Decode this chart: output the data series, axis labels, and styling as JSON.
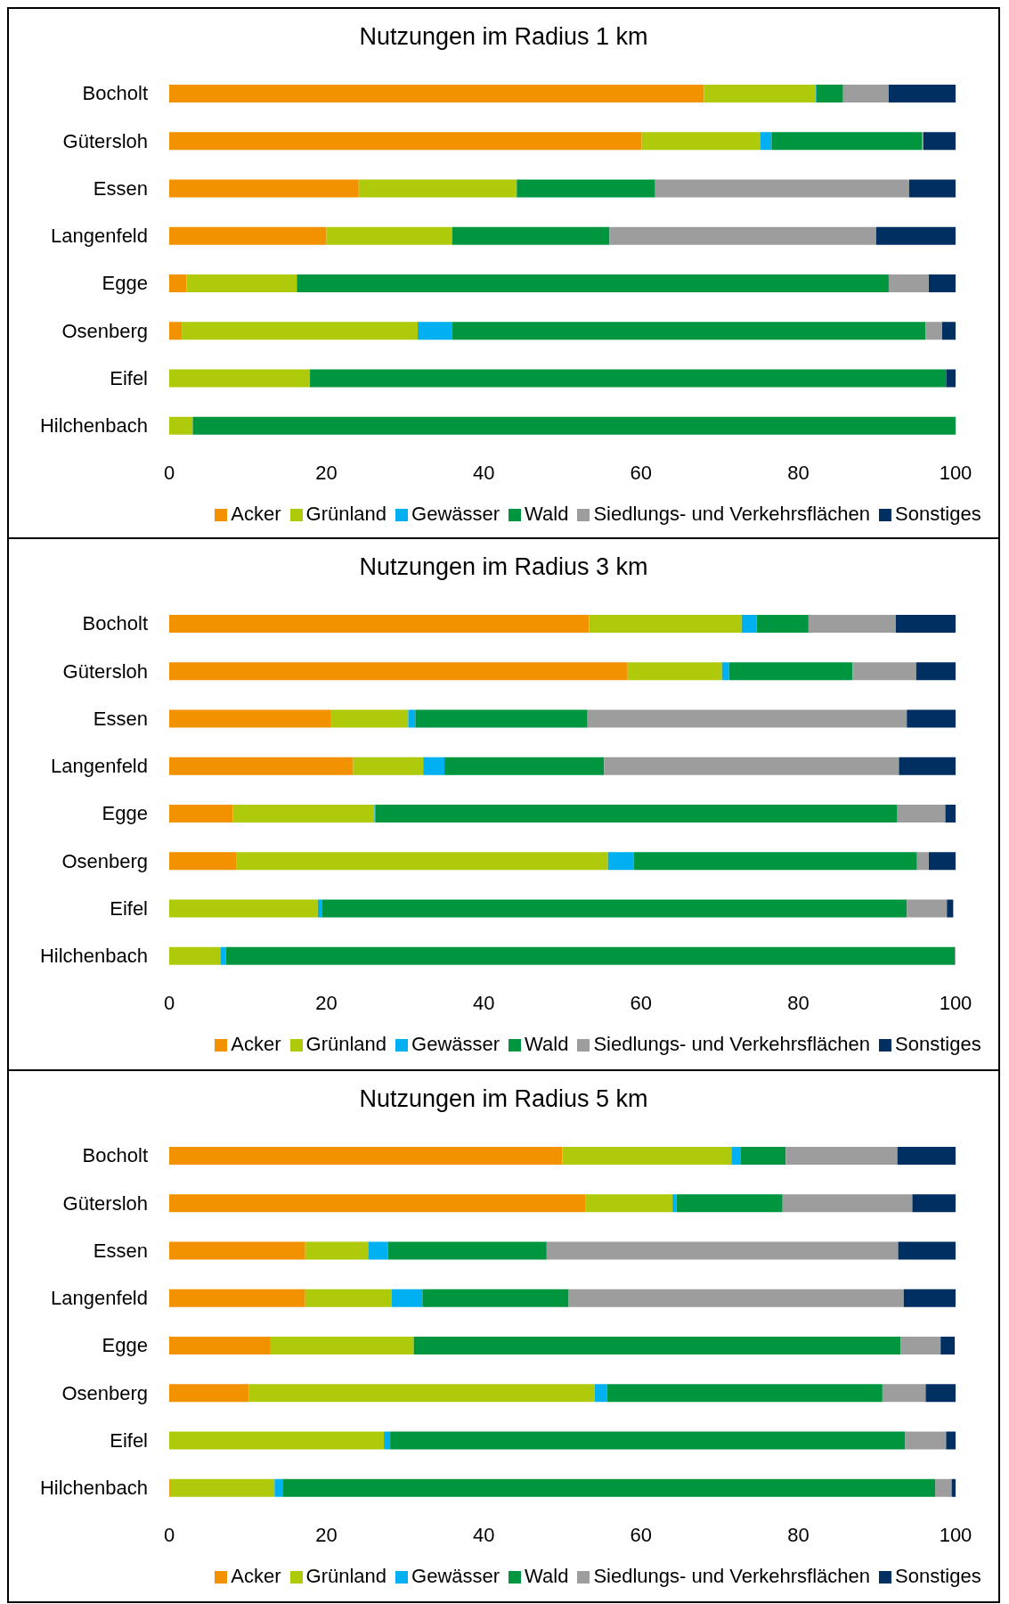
{
  "chart_data": [
    {
      "type": "bar",
      "title": "Nutzungen im Radius 1 km",
      "orientation": "horizontal",
      "stacked": true,
      "categories": [
        "Bocholt",
        "Gütersloh",
        "Essen",
        "Langenfeld",
        "Egge",
        "Osenberg",
        "Eifel",
        "Hilchenbach"
      ],
      "xlim": [
        0,
        100
      ],
      "xticks": [
        0,
        20,
        40,
        60,
        80,
        100
      ],
      "grid": false,
      "legend": "bottom",
      "series": [
        {
          "name": "Acker",
          "color": "#f39200",
          "values": [
            68,
            60.1,
            24.1,
            20,
            2.2,
            1.6,
            0,
            0
          ]
        },
        {
          "name": "Grünland",
          "color": "#afca0b",
          "values": [
            14.2,
            15.1,
            20.1,
            16,
            14,
            30,
            17.9,
            3
          ]
        },
        {
          "name": "Gewässer",
          "color": "#00b0f0",
          "values": [
            0.1,
            1.4,
            0,
            0,
            0.1,
            4.4,
            0,
            0
          ]
        },
        {
          "name": "Wald",
          "color": "#009640",
          "values": [
            3.4,
            19.1,
            17.6,
            20,
            75.2,
            60.2,
            80.9,
            97
          ]
        },
        {
          "name": "Siedlungs- und Verkehrsflächen",
          "color": "#9d9d9d",
          "values": [
            5.8,
            0.2,
            32.3,
            33.9,
            5.1,
            2.1,
            0,
            0
          ]
        },
        {
          "name": "Sonstiges",
          "color": "#002f62",
          "values": [
            8.5,
            4.1,
            5.9,
            10.1,
            3.4,
            1.7,
            1.2,
            0
          ]
        }
      ]
    },
    {
      "type": "bar",
      "title": "Nutzungen im Radius 3 km",
      "orientation": "horizontal",
      "stacked": true,
      "categories": [
        "Bocholt",
        "Gütersloh",
        "Essen",
        "Langenfeld",
        "Egge",
        "Osenberg",
        "Eifel",
        "Hilchenbach"
      ],
      "xlim": [
        0,
        100
      ],
      "xticks": [
        0,
        20,
        40,
        60,
        80,
        100
      ],
      "grid": false,
      "legend": "bottom",
      "series": [
        {
          "name": "Acker",
          "color": "#f39200",
          "values": [
            53.4,
            58.3,
            20.5,
            23.4,
            8.1,
            8.5,
            0,
            0
          ]
        },
        {
          "name": "Grünland",
          "color": "#afca0b",
          "values": [
            19.4,
            12,
            9.9,
            8.9,
            18,
            47.3,
            18.9,
            6.5
          ]
        },
        {
          "name": "Gewässer",
          "color": "#00b0f0",
          "values": [
            1.9,
            0.9,
            0.9,
            2.7,
            0.1,
            3.3,
            0.5,
            0.7
          ]
        },
        {
          "name": "Wald",
          "color": "#009640",
          "values": [
            6.6,
            15.7,
            21.9,
            20.3,
            66.4,
            36,
            74.4,
            92.7
          ]
        },
        {
          "name": "Siedlungs- und Verkehrsflächen",
          "color": "#9d9d9d",
          "values": [
            11.1,
            8.1,
            40.6,
            37.5,
            6.1,
            1.5,
            5.1,
            0.1
          ]
        },
        {
          "name": "Sonstiges",
          "color": "#002f62",
          "values": [
            7.6,
            5,
            6.2,
            7.2,
            1.3,
            3.4,
            0.8,
            0
          ]
        }
      ]
    },
    {
      "type": "bar",
      "title": "Nutzungen im Radius 5 km",
      "orientation": "horizontal",
      "stacked": true,
      "categories": [
        "Bocholt",
        "Gütersloh",
        "Essen",
        "Langenfeld",
        "Egge",
        "Osenberg",
        "Eifel",
        "Hilchenbach"
      ],
      "xlim": [
        0,
        100
      ],
      "xticks": [
        0,
        20,
        40,
        60,
        80,
        100
      ],
      "grid": false,
      "legend": "bottom",
      "series": [
        {
          "name": "Acker",
          "color": "#f39200",
          "values": [
            50,
            52.9,
            17.3,
            17.3,
            12.9,
            10.1,
            0,
            0.1
          ]
        },
        {
          "name": "Grünland",
          "color": "#afca0b",
          "values": [
            21.5,
            11.1,
            8,
            11,
            18.2,
            44,
            27.3,
            13.3
          ]
        },
        {
          "name": "Gewässer",
          "color": "#00b0f0",
          "values": [
            1.2,
            0.5,
            2.5,
            3.9,
            null,
            1.6,
            0.8,
            1.1
          ]
        },
        {
          "name": "Wald",
          "color": "#009640",
          "values": [
            5.7,
            13.5,
            20.2,
            18.6,
            61.9,
            35,
            65.5,
            82.9
          ]
        },
        {
          "name": "Siedlungs- und Verkehrsflächen",
          "color": "#9d9d9d",
          "values": [
            14.2,
            16.5,
            44.7,
            42.6,
            5.1,
            5.5,
            5.2,
            2.1
          ]
        },
        {
          "name": "Sonstiges",
          "color": "#002f62",
          "values": [
            7.4,
            5.5,
            7.3,
            6.6,
            1.8,
            3.8,
            1.2,
            0.5
          ]
        }
      ]
    }
  ]
}
